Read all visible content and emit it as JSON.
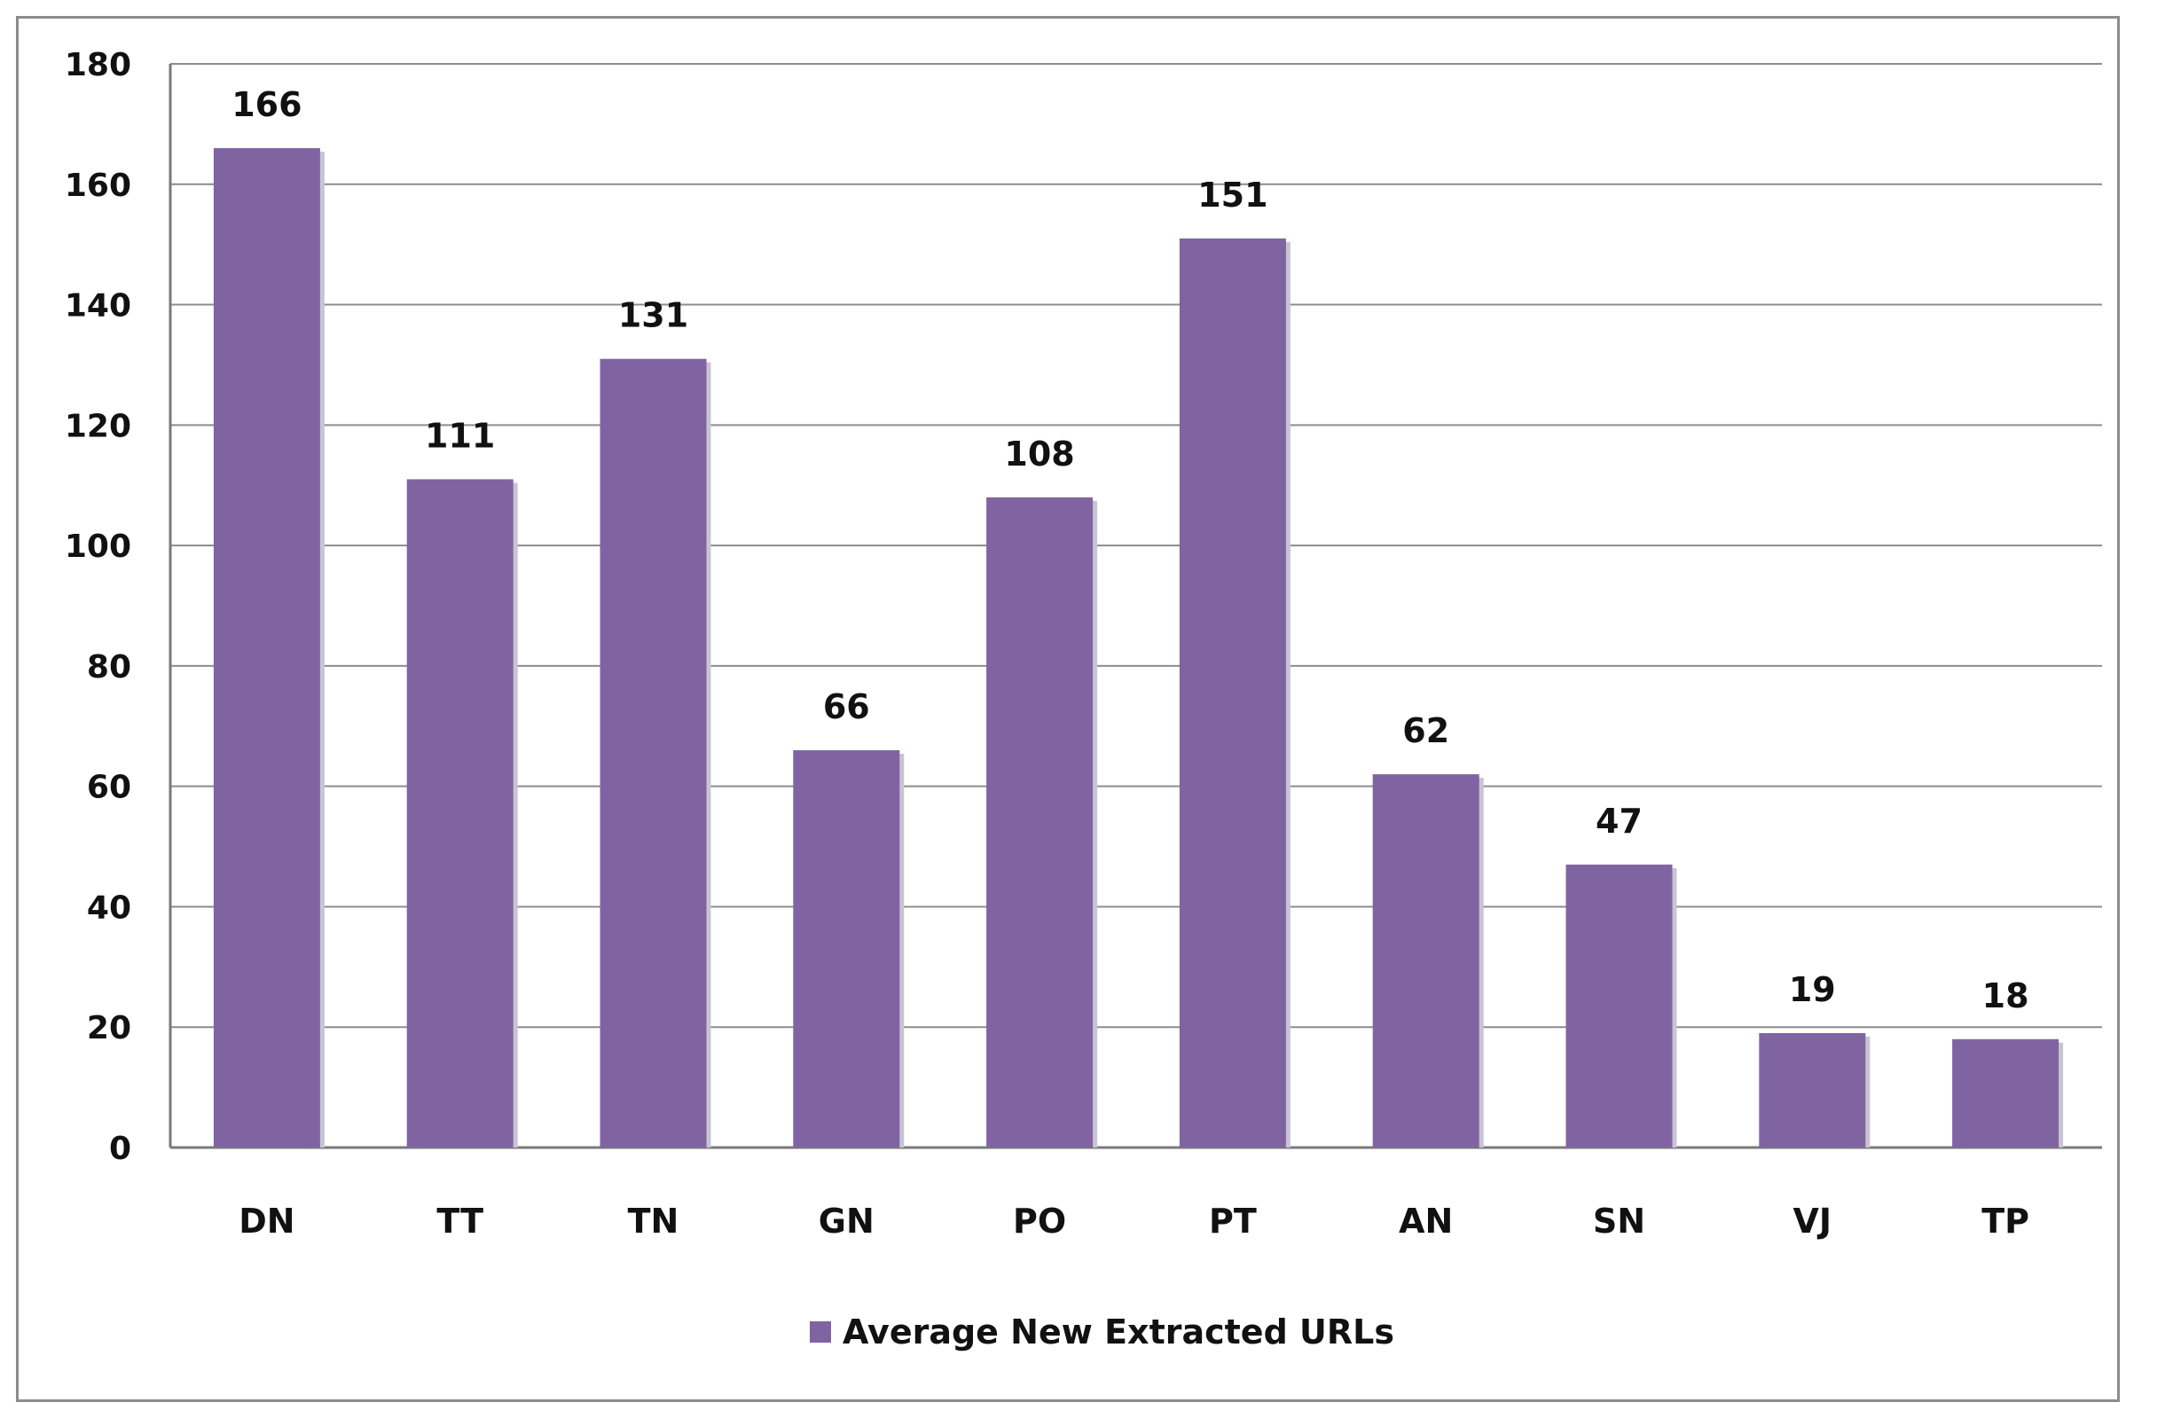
{
  "chart_data": {
    "type": "bar",
    "categories": [
      "DN",
      "TT",
      "TN",
      "GN",
      "PO",
      "PT",
      "AN",
      "SN",
      "VJ",
      "TP"
    ],
    "series": [
      {
        "name": "Average New Extracted URLs",
        "values": [
          166,
          111,
          131,
          66,
          108,
          151,
          62,
          47,
          19,
          18
        ],
        "color": "#8064a2"
      }
    ],
    "data_labels": [
      "166",
      "111",
      "131",
      "66",
      "108",
      "151",
      "62",
      "47",
      "19",
      "18"
    ],
    "y_ticks": [
      "0",
      "20",
      "40",
      "60",
      "80",
      "100",
      "120",
      "140",
      "160",
      "180"
    ],
    "ylim": [
      0,
      180
    ],
    "grid": true,
    "legend_position": "bottom",
    "title": "",
    "xlabel": "",
    "ylabel": ""
  }
}
